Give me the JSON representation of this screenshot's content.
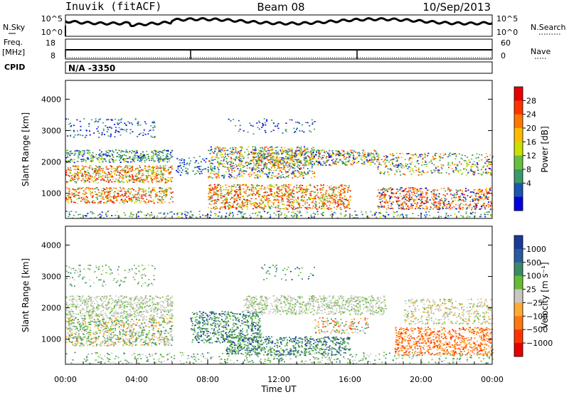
{
  "header": {
    "site": "Inuvik (fitACF)",
    "beam": "Beam 08",
    "date": "10/Sep/2013"
  },
  "noise_panel": {
    "left_label": "N.Sky",
    "right_label": "N.Search",
    "left_ticks": [
      "10^5",
      "10^0"
    ],
    "right_ticks": [
      "10^5",
      "10^0"
    ]
  },
  "freq_panel": {
    "left_label_line1": "Freq.",
    "left_label_line2": "[MHz]",
    "left_ticks": [
      "18",
      "8"
    ],
    "right_label": "Nave",
    "right_ticks": [
      "60",
      "0"
    ]
  },
  "cpid": {
    "label": "CPID",
    "value": "N/A -3350"
  },
  "chart_data": [
    {
      "type": "heatmap",
      "panel": "power",
      "ylabel": "Slant Range [km]",
      "ylim": [
        200,
        4600
      ],
      "yticks": [
        "4000",
        "3000",
        "2000",
        "1000"
      ],
      "xlim_hours": [
        0,
        24
      ],
      "colorbar": {
        "label": "Power [dB]",
        "ticks": [
          "28",
          "24",
          "20",
          "16",
          "12",
          "8",
          "4"
        ],
        "colors": [
          "#e60000",
          "#ff3300",
          "#ff7700",
          "#ffbb00",
          "#cce000",
          "#66c040",
          "#3a9a6a",
          "#1a55b0",
          "#0000e0"
        ]
      }
    },
    {
      "type": "heatmap",
      "panel": "velocity",
      "ylabel": "Slant Range [km]",
      "ylim": [
        200,
        4600
      ],
      "yticks": [
        "4000",
        "3000",
        "2000",
        "1000"
      ],
      "xlim_hours": [
        0,
        24
      ],
      "xlabel": "Time UT",
      "xticks": [
        "00:00",
        "04:00",
        "08:00",
        "12:00",
        "16:00",
        "20:00",
        "00:00"
      ],
      "colorbar": {
        "label": "Velocity [m s⁻¹]",
        "ticks": [
          "1000",
          "500",
          "100",
          "25",
          "−25",
          "−100",
          "−500",
          "−1000"
        ],
        "colors": [
          "#1a3a9a",
          "#2a5aa0",
          "#3a8a6a",
          "#66bb33",
          "#c8c8c0",
          "#ffaa33",
          "#ff7711",
          "#ff3300",
          "#e60000"
        ]
      }
    }
  ]
}
